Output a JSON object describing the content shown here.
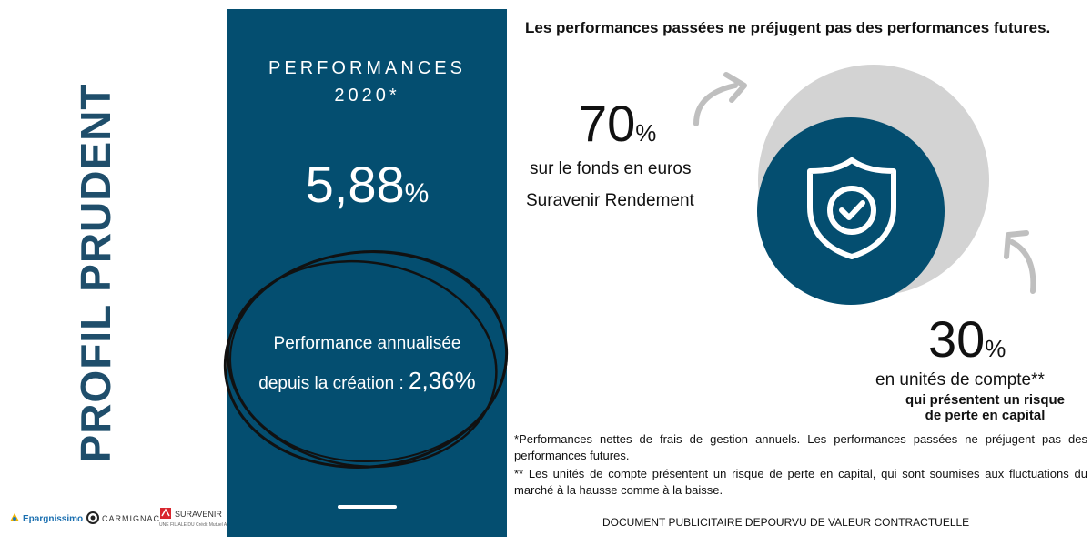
{
  "profile_title": "PROFIL PRUDENT",
  "logos": {
    "epargnissimo": "Epargnissimo",
    "carmignac": "CARMIGNAC",
    "suravenir": "SURAVENIR",
    "suravenir_sub": "UNE FILIALE DU Crédit Mutuel ARKÉA"
  },
  "panel": {
    "title_line1": "PERFORMANCES",
    "title_line2": "2020*",
    "value": "5,88",
    "value_unit": "%",
    "annual_line1": "Performance annualisée",
    "annual_line2_prefix": "depuis la création : ",
    "annual_value": "2,36%"
  },
  "headline": "Les performances passées ne préjugent pas des performances futures.",
  "allocation_euro": {
    "value": "70",
    "unit": "%",
    "label_line1": "sur le fonds en euros",
    "label_line2": "Suravenir Rendement",
    "share": 0.7
  },
  "allocation_uc": {
    "value": "30",
    "unit": "%",
    "label_line1": "en unités de compte**",
    "label_line2": "qui présentent un risque",
    "label_line3": "de perte en capital",
    "share": 0.3
  },
  "icons": {
    "center": "shield-check-icon",
    "arrow_top": "curved-arrow-icon",
    "arrow_bottom": "curved-arrow-icon"
  },
  "colors": {
    "brand_blue": "#044e70",
    "ring_grey": "#d3d3d3"
  },
  "footnotes": {
    "note1": "*Performances nettes de frais de gestion annuels. Les performances passées ne préjugent pas des performances futures.",
    "note2": "** Les unités de compte présentent un risque de perte en capital, qui sont soumises aux fluctuations du marché à la hausse comme à la baisse.",
    "disclaimer": "DOCUMENT PUBLICITAIRE DEPOURVU DE VALEUR CONTRACTUELLE"
  }
}
